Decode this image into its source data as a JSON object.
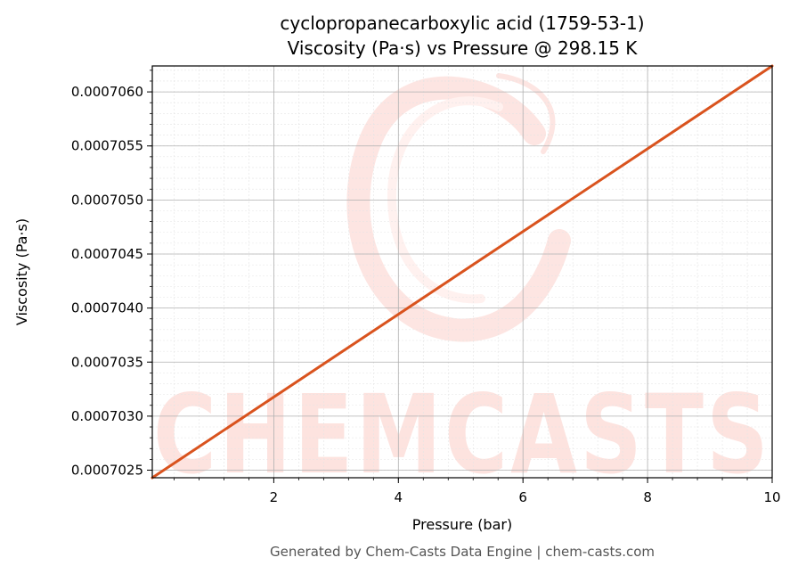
{
  "chart_data": {
    "type": "line",
    "title": "cyclopropanecarboxylic acid (1759-53-1)",
    "subtitle": "Viscosity (Pa·s) vs Pressure @ 298.15 K",
    "xlabel": "Pressure (bar)",
    "ylabel": "Viscosity (Pa·s)",
    "xlim": [
      0.05,
      10
    ],
    "ylim": [
      0.00070243,
      0.00070624
    ],
    "x_ticks": [
      2,
      4,
      6,
      8,
      10
    ],
    "x_tick_labels": [
      "2",
      "4",
      "6",
      "8",
      "10"
    ],
    "y_ticks": [
      0.0007025,
      0.000703,
      0.0007035,
      0.000704,
      0.0007045,
      0.000705,
      0.0007055,
      0.000706
    ],
    "y_tick_labels": [
      "0.0007025",
      "0.0007030",
      "0.0007035",
      "0.0007040",
      "0.0007045",
      "0.0007050",
      "0.0007055",
      "0.0007060"
    ],
    "grid": true,
    "series": [
      {
        "color": "#d9531e",
        "x": [
          0.05,
          10
        ],
        "y": [
          0.00070243,
          0.00070624
        ]
      }
    ]
  },
  "watermark": "CHEMCASTS",
  "footer": "Generated by Chem-Casts Data Engine | chem-casts.com"
}
